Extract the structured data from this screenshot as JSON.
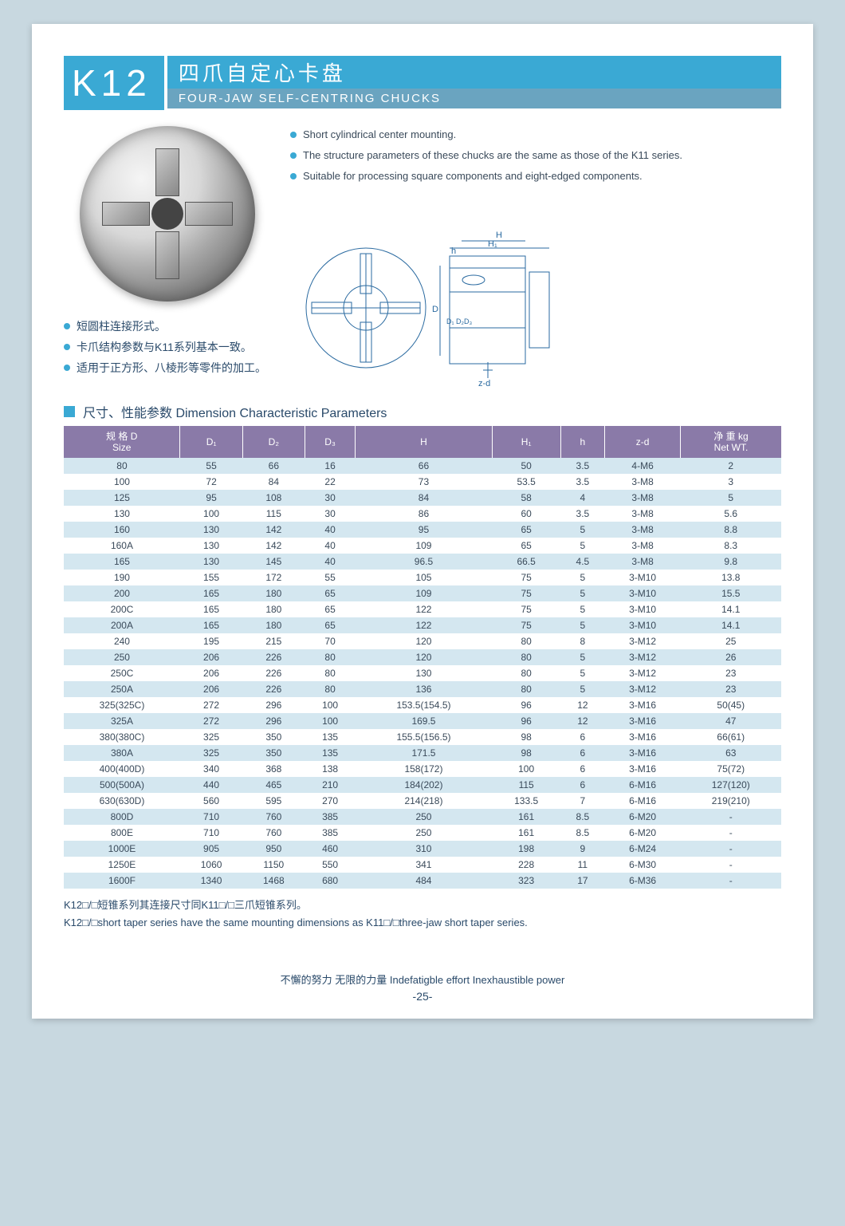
{
  "header": {
    "code": "K12",
    "title_cn": "四爪自定心卡盘",
    "title_en": "FOUR-JAW  SELF-CENTRING  CHUCKS"
  },
  "bullets_en": [
    "Short cylindrical center mounting.",
    "The structure parameters of these chucks are the same as those of the K11 series.",
    "Suitable for processing square components and eight-edged components."
  ],
  "bullets_cn": [
    "短圆柱连接形式。",
    "卡爪结构参数与K11系列基本一致。",
    "适用于正方形、八棱形等零件的加工。"
  ],
  "diagram_labels": {
    "H": "H",
    "H1": "H₁",
    "h": "h",
    "D": "D",
    "D1": "D₁",
    "D2": "D₂",
    "D3": "D₃",
    "zd": "z-d"
  },
  "section_title": "尺寸、性能参数    Dimension  Characteristic Parameters",
  "table": {
    "columns": [
      "规 格 D\nSize",
      "D₁",
      "D₂",
      "D₃",
      "H",
      "H₁",
      "h",
      "z-d",
      "净 重 kg\nNet WT."
    ],
    "rows": [
      [
        "80",
        "55",
        "66",
        "16",
        "66",
        "50",
        "3.5",
        "4-M6",
        "2"
      ],
      [
        "100",
        "72",
        "84",
        "22",
        "73",
        "53.5",
        "3.5",
        "3-M8",
        "3"
      ],
      [
        "125",
        "95",
        "108",
        "30",
        "84",
        "58",
        "4",
        "3-M8",
        "5"
      ],
      [
        "130",
        "100",
        "115",
        "30",
        "86",
        "60",
        "3.5",
        "3-M8",
        "5.6"
      ],
      [
        "160",
        "130",
        "142",
        "40",
        "95",
        "65",
        "5",
        "3-M8",
        "8.8"
      ],
      [
        "160A",
        "130",
        "142",
        "40",
        "109",
        "65",
        "5",
        "3-M8",
        "8.3"
      ],
      [
        "165",
        "130",
        "145",
        "40",
        "96.5",
        "66.5",
        "4.5",
        "3-M8",
        "9.8"
      ],
      [
        "190",
        "155",
        "172",
        "55",
        "105",
        "75",
        "5",
        "3-M10",
        "13.8"
      ],
      [
        "200",
        "165",
        "180",
        "65",
        "109",
        "75",
        "5",
        "3-M10",
        "15.5"
      ],
      [
        "200C",
        "165",
        "180",
        "65",
        "122",
        "75",
        "5",
        "3-M10",
        "14.1"
      ],
      [
        "200A",
        "165",
        "180",
        "65",
        "122",
        "75",
        "5",
        "3-M10",
        "14.1"
      ],
      [
        "240",
        "195",
        "215",
        "70",
        "120",
        "80",
        "8",
        "3-M12",
        "25"
      ],
      [
        "250",
        "206",
        "226",
        "80",
        "120",
        "80",
        "5",
        "3-M12",
        "26"
      ],
      [
        "250C",
        "206",
        "226",
        "80",
        "130",
        "80",
        "5",
        "3-M12",
        "23"
      ],
      [
        "250A",
        "206",
        "226",
        "80",
        "136",
        "80",
        "5",
        "3-M12",
        "23"
      ],
      [
        "325(325C)",
        "272",
        "296",
        "100",
        "153.5(154.5)",
        "96",
        "12",
        "3-M16",
        "50(45)"
      ],
      [
        "325A",
        "272",
        "296",
        "100",
        "169.5",
        "96",
        "12",
        "3-M16",
        "47"
      ],
      [
        "380(380C)",
        "325",
        "350",
        "135",
        "155.5(156.5)",
        "98",
        "6",
        "3-M16",
        "66(61)"
      ],
      [
        "380A",
        "325",
        "350",
        "135",
        "171.5",
        "98",
        "6",
        "3-M16",
        "63"
      ],
      [
        "400(400D)",
        "340",
        "368",
        "138",
        "158(172)",
        "100",
        "6",
        "3-M16",
        "75(72)"
      ],
      [
        "500(500A)",
        "440",
        "465",
        "210",
        "184(202)",
        "115",
        "6",
        "6-M16",
        "127(120)"
      ],
      [
        "630(630D)",
        "560",
        "595",
        "270",
        "214(218)",
        "133.5",
        "7",
        "6-M16",
        "219(210)"
      ],
      [
        "800D",
        "710",
        "760",
        "385",
        "250",
        "161",
        "8.5",
        "6-M20",
        "-"
      ],
      [
        "800E",
        "710",
        "760",
        "385",
        "250",
        "161",
        "8.5",
        "6-M20",
        "-"
      ],
      [
        "1000E",
        "905",
        "950",
        "460",
        "310",
        "198",
        "9",
        "6-M24",
        "-"
      ],
      [
        "1250E",
        "1060",
        "1150",
        "550",
        "341",
        "228",
        "11",
        "6-M30",
        "-"
      ],
      [
        "1600F",
        "1340",
        "1468",
        "680",
        "484",
        "323",
        "17",
        "6-M36",
        "-"
      ]
    ],
    "header_bg": "#8a7aa8",
    "row_odd_bg": "#d4e7f0",
    "row_even_bg": "#ffffff",
    "text_color": "#3a4a5a"
  },
  "footnote_cn": "K12□/□短锥系列其连接尺寸同K11□/□三爪短锥系列。",
  "footnote_en": "K12□/□short taper series have the same mounting dimensions as K11□/□three-jaw short taper series.",
  "footer": "不懈的努力    无限的力量    Indefatigble effort  Inexhaustible power",
  "page_num": "-25-",
  "colors": {
    "brand": "#3aa9d4",
    "subbar": "#6aa4c0",
    "page_bg": "#c8d8e0"
  }
}
